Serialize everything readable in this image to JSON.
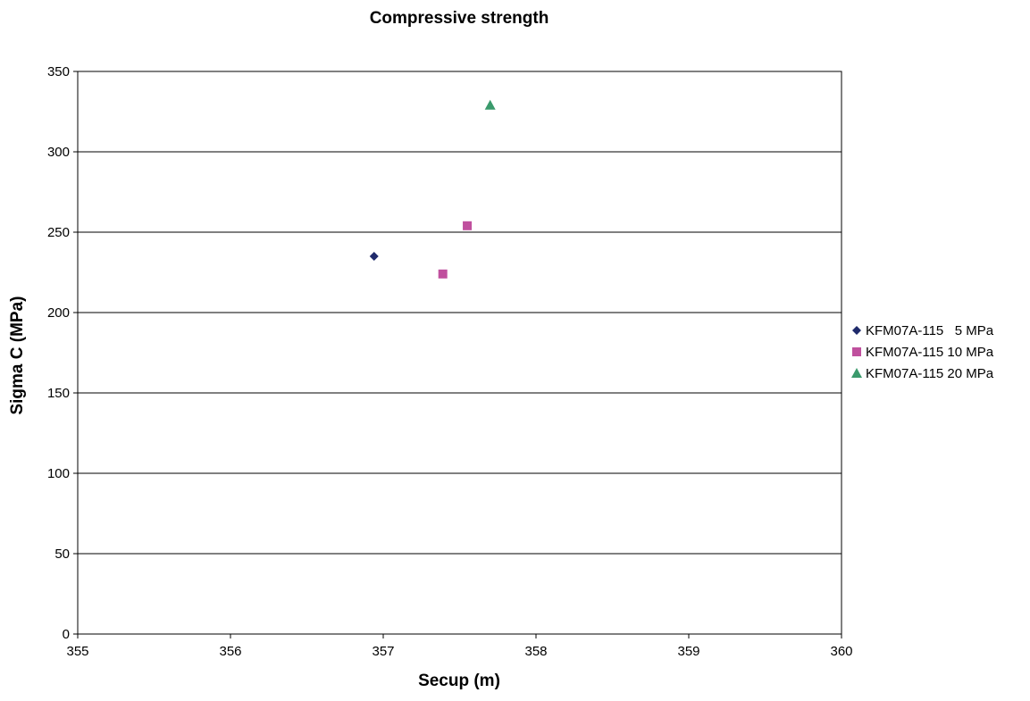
{
  "chart_data": {
    "type": "scatter",
    "title": "Compressive strength",
    "xlabel": "Secup (m)",
    "ylabel": "Sigma C (MPa)",
    "xlim": [
      355,
      360
    ],
    "ylim": [
      0,
      350
    ],
    "x_ticks": [
      "355",
      "356",
      "357",
      "358",
      "359",
      "360"
    ],
    "y_ticks": [
      "0",
      "50",
      "100",
      "150",
      "200",
      "250",
      "300",
      "350"
    ],
    "grid": "horizontal",
    "legend_position": "right",
    "series": [
      {
        "name": "KFM07A-115   5 MPa",
        "marker": "diamond",
        "color": "#1f2a6b",
        "points": [
          {
            "x": 356.94,
            "y": 235
          }
        ]
      },
      {
        "name": "KFM07A-115 10 MPa",
        "marker": "square",
        "color": "#c0509e",
        "points": [
          {
            "x": 357.39,
            "y": 224
          },
          {
            "x": 357.55,
            "y": 254
          }
        ]
      },
      {
        "name": "KFM07A-115 20 MPa",
        "marker": "triangle",
        "color": "#3a9a6c",
        "points": [
          {
            "x": 357.7,
            "y": 329
          }
        ]
      }
    ]
  }
}
